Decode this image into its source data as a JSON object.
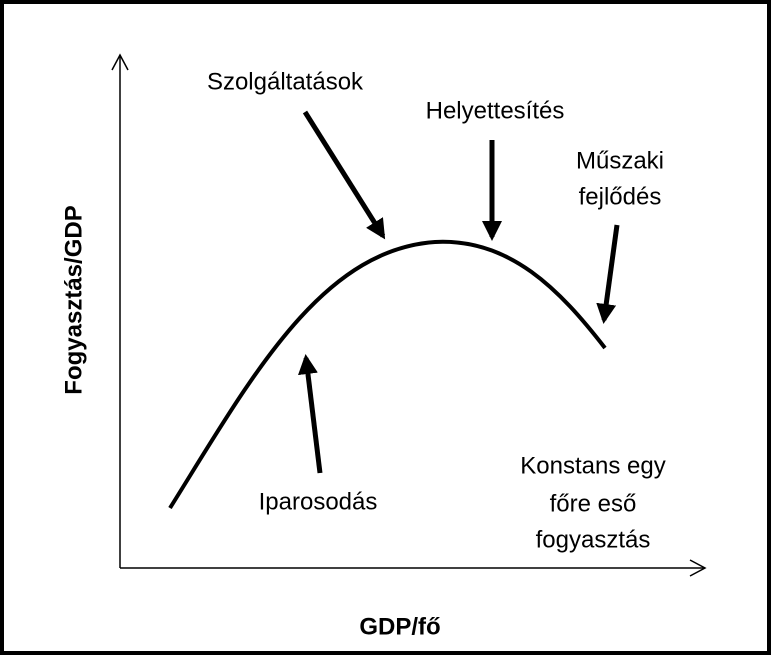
{
  "axes": {
    "x_label": "GDP/fő",
    "y_label": "Fogyasztás/GDP"
  },
  "annotations": {
    "services": "Szolgáltatások",
    "substitution": "Helyettesítés",
    "technical": [
      "Műszaki",
      "fejlődés"
    ],
    "industrialization": "Iparosodás",
    "constant": [
      "Konstans egy",
      "főre eső",
      "fogyasztás"
    ]
  }
}
